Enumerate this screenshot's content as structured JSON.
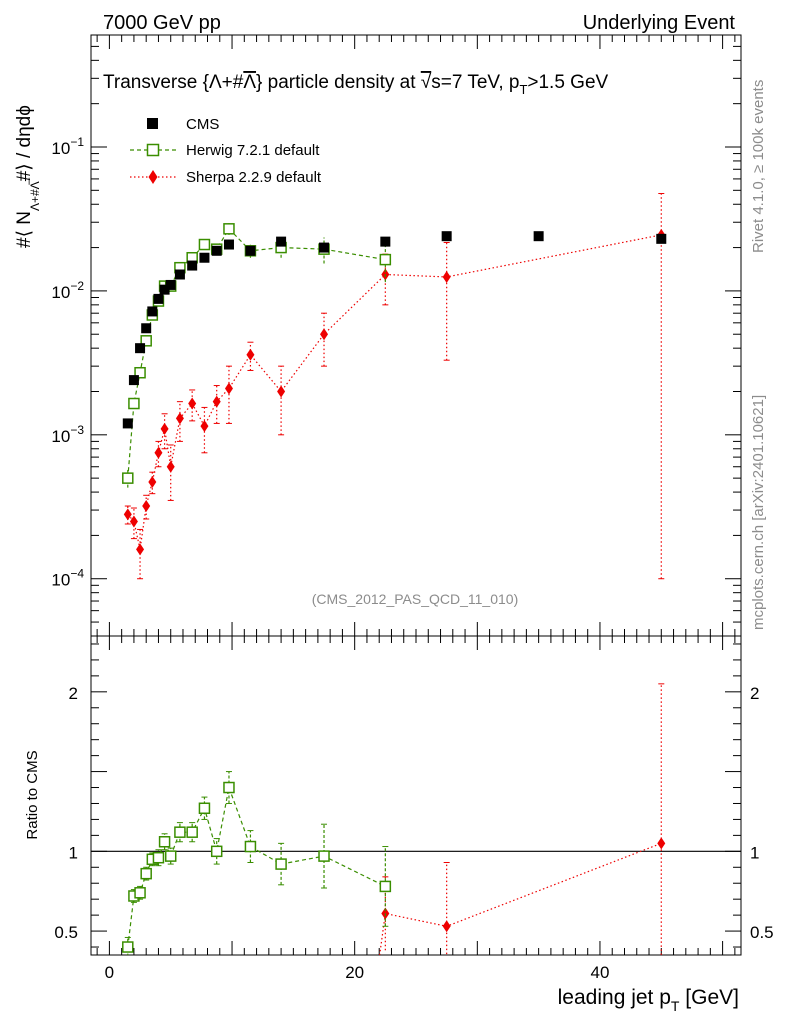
{
  "header": {
    "left": "7000 GeV pp",
    "right": "Underlying Event"
  },
  "side": {
    "rivet": "Rivet 4.1.0, ≥ 100k events",
    "mcplots": "mcplots.cern.ch [arXiv:2401.10621]"
  },
  "colors": {
    "cms": "#000000",
    "herwig": "#3a8e00",
    "sherpa": "#ee0000"
  },
  "chart_data": {
    "type": "scatter",
    "title": "Transverse {Λ+#Λ̅} particle density at √s=7 TeV, p_T>1.5 GeV",
    "title_parts": {
      "pre": "Transverse {Λ+#",
      "lambda": "Λ",
      "mid": "} particle density at ",
      "sqrt": "√",
      "s": "s=7 TeV, p",
      "sub": "T",
      "post": ">1.5 GeV"
    },
    "analysis_label": "(CMS_2012_PAS_QCD_11_010)",
    "ylabel": "#⟨ N_{Λ+#Λ̅} #⟩ / dηdϕ",
    "ylabel_parts": {
      "a": "#⟨ N",
      "sub": "Λ+#Λ̅",
      "b": "#⟩ / dηdϕ"
    },
    "xlabel": "leading jet p_T [GeV]",
    "xlabel_parts": {
      "a": "leading jet p",
      "sub": "T",
      "b": " [GeV]"
    },
    "ratio_ylabel": "Ratio to CMS",
    "xlim": [
      -1.5,
      51.5
    ],
    "ylim_log": [
      4e-05,
      0.6
    ],
    "ratio_ylim": [
      0.35,
      2.35
    ],
    "xticks": [
      0,
      20,
      40
    ],
    "xtick_labels": [
      "0",
      "20",
      "40"
    ],
    "yticks": [
      0.0001,
      0.001,
      0.01,
      0.1
    ],
    "ytick_labels": [
      {
        "base": "10",
        "exp": "−4"
      },
      {
        "base": "10",
        "exp": "−3"
      },
      {
        "base": "10",
        "exp": "−2"
      },
      {
        "base": "10",
        "exp": "−1"
      }
    ],
    "ratio_yticks": [
      0.5,
      1,
      2
    ],
    "ratio_ytick_labels": [
      "0.5",
      "1",
      "2"
    ],
    "legend": [
      "CMS",
      "Herwig 7.2.1 default",
      "Sherpa 2.2.9 default"
    ],
    "series": [
      {
        "name": "CMS",
        "x": [
          1.5,
          2.0,
          2.5,
          3.0,
          3.5,
          4.0,
          4.5,
          5.0,
          5.75,
          6.75,
          7.75,
          8.75,
          9.75,
          11.5,
          14.0,
          17.5,
          22.5,
          27.5,
          35.0,
          45.0
        ],
        "y": [
          0.0012,
          0.0024,
          0.004,
          0.0055,
          0.0072,
          0.0088,
          0.0102,
          0.011,
          0.013,
          0.015,
          0.017,
          0.019,
          0.021,
          0.019,
          0.022,
          0.02,
          0.022,
          0.024,
          0.024,
          0.023
        ]
      },
      {
        "name": "Herwig 7.2.1 default",
        "x": [
          1.5,
          2.0,
          2.5,
          3.0,
          3.5,
          4.0,
          4.5,
          5.0,
          5.75,
          6.75,
          7.75,
          8.75,
          9.75,
          11.5,
          14.0,
          17.5,
          22.5
        ],
        "y": [
          0.0005,
          0.00165,
          0.0027,
          0.0045,
          0.0068,
          0.0085,
          0.0108,
          0.0108,
          0.0145,
          0.017,
          0.021,
          0.0195,
          0.027,
          0.019,
          0.02,
          0.0195,
          0.0165
        ],
        "yerr": [
          7e-05,
          0.0001,
          0.00015,
          0.0002,
          0.0003,
          0.0004,
          0.0005,
          0.0006,
          0.0008,
          0.001,
          0.0012,
          0.0015,
          0.0025,
          0.002,
          0.003,
          0.004,
          0.005
        ],
        "ratio": [
          0.4,
          0.72,
          0.74,
          0.86,
          0.95,
          0.96,
          1.06,
          0.97,
          1.12,
          1.12,
          1.27,
          1.0,
          1.4,
          1.03,
          0.92,
          0.97,
          0.78
        ],
        "ratio_err": [
          0.06,
          0.04,
          0.04,
          0.04,
          0.04,
          0.05,
          0.05,
          0.05,
          0.06,
          0.06,
          0.07,
          0.08,
          0.1,
          0.1,
          0.13,
          0.2,
          0.25
        ]
      },
      {
        "name": "Sherpa 2.2.9 default",
        "x": [
          1.5,
          2.0,
          2.5,
          3.0,
          3.5,
          4.0,
          4.5,
          5.0,
          5.75,
          6.75,
          7.75,
          8.75,
          9.75,
          11.5,
          14.0,
          17.5,
          22.5,
          27.5,
          45.0
        ],
        "y": [
          0.00028,
          0.00025,
          0.00016,
          0.00032,
          0.00047,
          0.00075,
          0.0011,
          0.0006,
          0.0013,
          0.00165,
          0.00115,
          0.0017,
          0.0021,
          0.0036,
          0.002,
          0.005,
          0.013,
          0.0125,
          0.0245
        ],
        "yerr_lo": [
          4e-05,
          6e-05,
          6e-05,
          6e-05,
          8e-05,
          0.00015,
          0.0003,
          0.00025,
          0.0004,
          0.0004,
          0.0004,
          0.0005,
          0.0009,
          0.0008,
          0.001,
          0.002,
          0.005,
          0.0092,
          0.0244
        ],
        "yerr_hi": [
          4e-05,
          6e-05,
          6e-05,
          6e-05,
          8e-05,
          0.00015,
          0.0003,
          0.00025,
          0.0004,
          0.0004,
          0.0004,
          0.0005,
          0.0009,
          0.0008,
          0.001,
          0.002,
          0.005,
          0.0092,
          0.023
        ],
        "ratio_x": [
          22.5,
          27.5,
          45.0
        ],
        "ratio": [
          0.61,
          0.53,
          1.05
        ],
        "ratio_err": [
          0.23,
          0.4,
          1.0
        ]
      }
    ]
  }
}
